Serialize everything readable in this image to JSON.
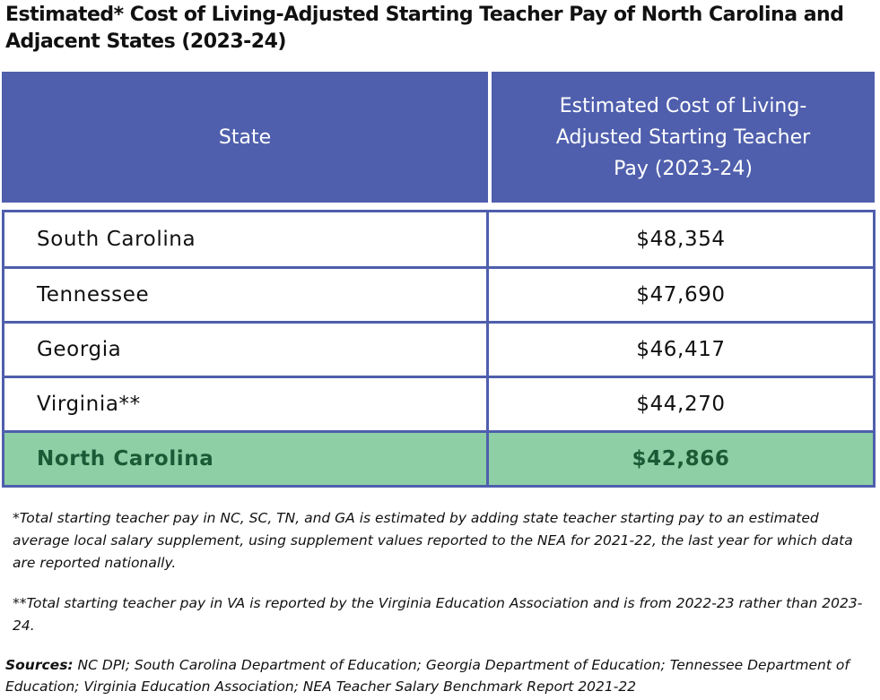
{
  "title": "Estimated* Cost of Living-Adjusted Starting Teacher Pay of North Carolina and Adjacent States (2023-24)",
  "table": {
    "headers": {
      "state": "State",
      "pay": "Estimated Cost of Living-Adjusted Starting Teacher Pay (2023-24)"
    },
    "rows": [
      {
        "state": "South Carolina",
        "pay": "$48,354"
      },
      {
        "state": "Tennessee",
        "pay": "$47,690"
      },
      {
        "state": "Georgia",
        "pay": "$46,417"
      },
      {
        "state": "Virginia**",
        "pay": "$44,270"
      },
      {
        "state": "North Carolina",
        "pay": "$42,866"
      }
    ]
  },
  "notes": {
    "note1": "*Total starting teacher pay in NC, SC, TN, and GA is estimated by adding state teacher starting pay to an estimated average local salary supplement, using supplement values reported to the NEA for 2021-22, the last year for which data are reported nationally.",
    "note2": "**Total starting teacher pay in VA is reported by the Virginia Education Association and is from 2022-23 rather than 2023-24."
  },
  "sources": {
    "label": "Sources:",
    "text": " NC DPI; South Carolina Department of Education; Georgia Department of Education; Tennessee Department of Education; Virginia Education Association; NEA Teacher Salary Benchmark Report 2021-22"
  },
  "colors": {
    "header_bg": "#4f5fad",
    "border": "#4f5fad",
    "highlight_bg": "#8ecfa6",
    "highlight_text": "#1c5a35"
  }
}
